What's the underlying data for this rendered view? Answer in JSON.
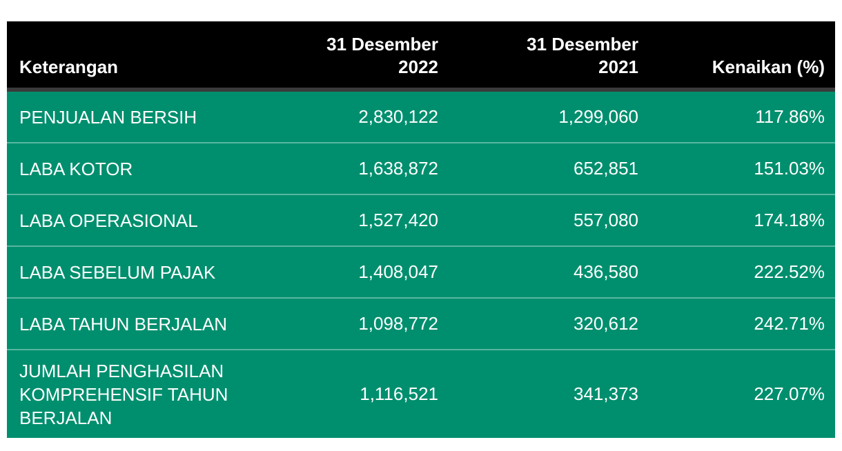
{
  "table": {
    "header": {
      "col1": "Keterangan",
      "col2": {
        "line1": "31 Desember",
        "line2": "2022"
      },
      "col3": {
        "line1": "31 Desember",
        "line2": "2021"
      },
      "col4": "Kenaikan (%)"
    },
    "rows": [
      {
        "label": "PENJUALAN BERSIH",
        "v2022": "2,830,122",
        "v2021": "1,299,060",
        "pct": "117.86%"
      },
      {
        "label": "LABA KOTOR",
        "v2022": "1,638,872",
        "v2021": "652,851",
        "pct": "151.03%"
      },
      {
        "label": "LABA OPERASIONAL",
        "v2022": "1,527,420",
        "v2021": "557,080",
        "pct": "174.18%"
      },
      {
        "label": "LABA SEBELUM PAJAK",
        "v2022": "1,408,047",
        "v2021": "436,580",
        "pct": "222.52%"
      },
      {
        "label": "LABA TAHUN BERJALAN",
        "v2022": "1,098,772",
        "v2021": "320,612",
        "pct": "242.71%"
      },
      {
        "label": "JUMLAH PENGHASILAN KOMPREHENSIF TAHUN BERJALAN",
        "v2022": "1,116,521",
        "v2021": "341,373",
        "pct": "227.07%"
      }
    ],
    "colors": {
      "header_bg": "#000000",
      "header_border": "#3a3a3a",
      "row_bg": "#008f6e",
      "row_separator": "rgba(255,255,255,0.35)",
      "text": "#ffffff"
    }
  }
}
